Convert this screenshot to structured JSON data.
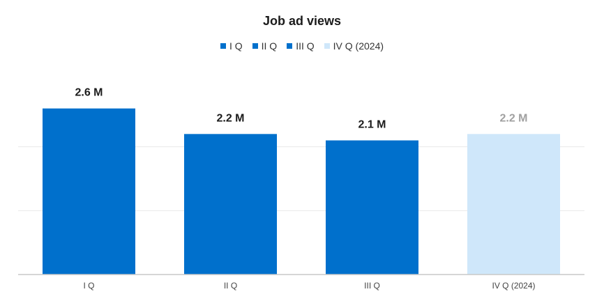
{
  "chart_data": {
    "type": "bar",
    "title": "Job ad views",
    "xlabel": "",
    "ylabel": "",
    "categories": [
      "I Q",
      "II Q",
      "III Q",
      "IV Q (2024)"
    ],
    "values": [
      2.6,
      2.2,
      2.1,
      2.2
    ],
    "data_labels": [
      "2.6 M",
      "2.2 M",
      "2.1 M",
      "2.2 M"
    ],
    "ylim": [
      0,
      3
    ],
    "grid": true,
    "legend": {
      "placement": "top-center",
      "entries": [
        "I Q",
        "II Q",
        "III Q",
        "IV Q (2024)"
      ]
    },
    "colors": [
      "#0070cc",
      "#0070cc",
      "#0070cc",
      "#cfe7fa"
    ],
    "label_colors": [
      "#1b1b1b",
      "#1b1b1b",
      "#1b1b1b",
      "#a0a0a0"
    ],
    "gridline_color": "#e8e8e8",
    "axis_color": "#c8c8c8"
  }
}
